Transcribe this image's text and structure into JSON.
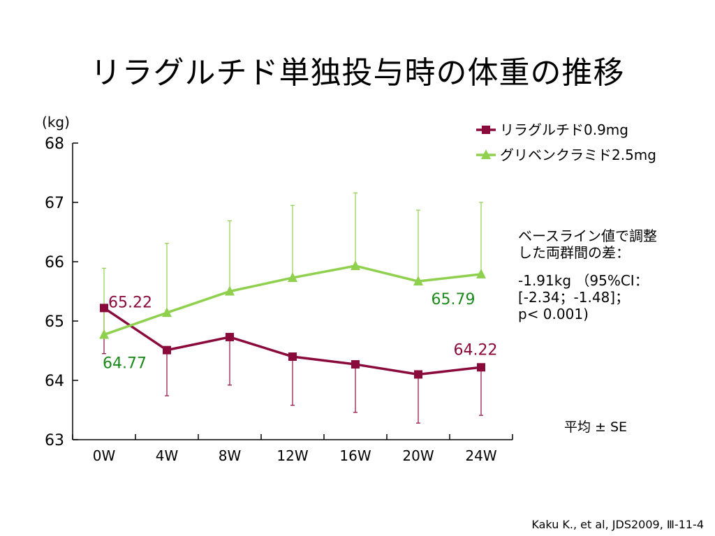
{
  "title": "リラグルチド単独投与時の体重の推移",
  "note": {
    "heading_line1": "ベースライン値で調整",
    "heading_line2": "した両群間の差：",
    "diff_line1": "-1.91kg （95%CI：",
    "diff_line2": "[-2.34；-1.48]；",
    "diff_line3": "p< 0.001)"
  },
  "error_note": "平均 ± SE",
  "citation": "Kaku K., et al, JDS2009, Ⅲ-11-4",
  "chart_data": {
    "type": "line",
    "ylabel": "(kg)",
    "xlabel": "",
    "categories": [
      "0W",
      "4W",
      "8W",
      "12W",
      "16W",
      "20W",
      "24W"
    ],
    "ylim": [
      63,
      68
    ],
    "yticks": [
      63,
      64,
      65,
      66,
      67,
      68
    ],
    "grid": false,
    "legend_position": "top-right",
    "series": [
      {
        "name": "リラグルチド0.9mg",
        "color": "#8b0a3c",
        "marker": "square",
        "values": [
          65.22,
          64.51,
          64.73,
          64.4,
          64.27,
          64.1,
          64.22
        ],
        "error_upper": [
          null,
          null,
          null,
          null,
          null,
          null,
          null
        ],
        "error_lower": [
          64.45,
          63.74,
          63.92,
          63.58,
          63.46,
          63.28,
          63.41
        ],
        "data_labels": [
          {
            "index": 0,
            "text": "65.22"
          },
          {
            "index": 6,
            "text": "64.22"
          }
        ]
      },
      {
        "name": "グリベンクラミド2.5mg",
        "color": "#8fd14f",
        "marker": "triangle",
        "values": [
          64.77,
          65.14,
          65.5,
          65.73,
          65.93,
          65.67,
          65.79
        ],
        "error_upper": [
          65.89,
          66.31,
          66.69,
          66.95,
          67.16,
          66.87,
          67.0
        ],
        "error_lower": [
          null,
          null,
          null,
          null,
          null,
          null,
          null
        ],
        "data_labels": [
          {
            "index": 0,
            "text": "64.77"
          },
          {
            "index": 6,
            "text": "65.79"
          }
        ]
      }
    ]
  }
}
